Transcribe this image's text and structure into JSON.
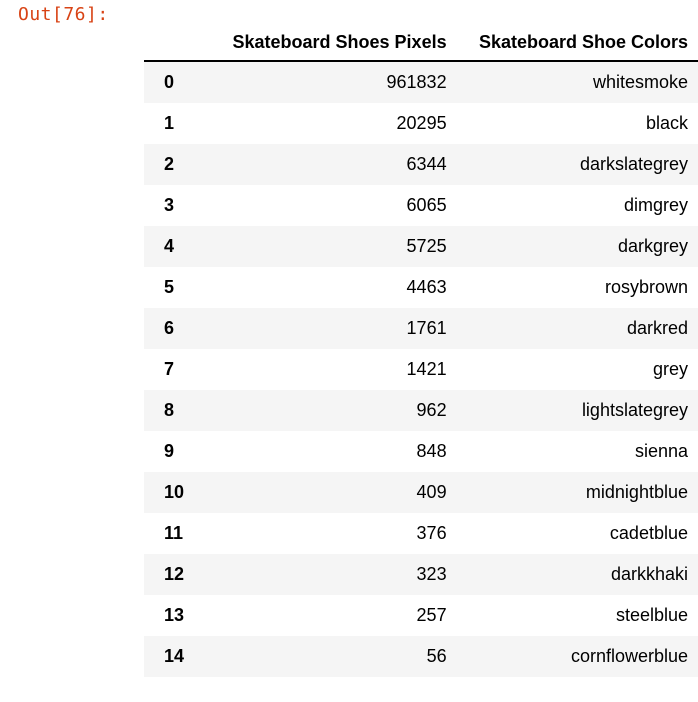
{
  "cell": {
    "prompt": "Out[76]:"
  },
  "table": {
    "index_header": "",
    "columns": [
      "Skateboard Shoes Pixels",
      "Skateboard Shoe Colors"
    ],
    "rows": [
      {
        "index": "0",
        "pixels": "961832",
        "color": "whitesmoke"
      },
      {
        "index": "1",
        "pixels": "20295",
        "color": "black"
      },
      {
        "index": "2",
        "pixels": "6344",
        "color": "darkslategrey"
      },
      {
        "index": "3",
        "pixels": "6065",
        "color": "dimgrey"
      },
      {
        "index": "4",
        "pixels": "5725",
        "color": "darkgrey"
      },
      {
        "index": "5",
        "pixels": "4463",
        "color": "rosybrown"
      },
      {
        "index": "6",
        "pixels": "1761",
        "color": "darkred"
      },
      {
        "index": "7",
        "pixels": "1421",
        "color": "grey"
      },
      {
        "index": "8",
        "pixels": "962",
        "color": "lightslategrey"
      },
      {
        "index": "9",
        "pixels": "848",
        "color": "sienna"
      },
      {
        "index": "10",
        "pixels": "409",
        "color": "midnightblue"
      },
      {
        "index": "11",
        "pixels": "376",
        "color": "cadetblue"
      },
      {
        "index": "12",
        "pixels": "323",
        "color": "darkkhaki"
      },
      {
        "index": "13",
        "pixels": "257",
        "color": "steelblue"
      },
      {
        "index": "14",
        "pixels": "56",
        "color": "cornflowerblue"
      }
    ]
  },
  "colors": {
    "prompt": "#d84315",
    "stripe": "#f5f5f5"
  }
}
